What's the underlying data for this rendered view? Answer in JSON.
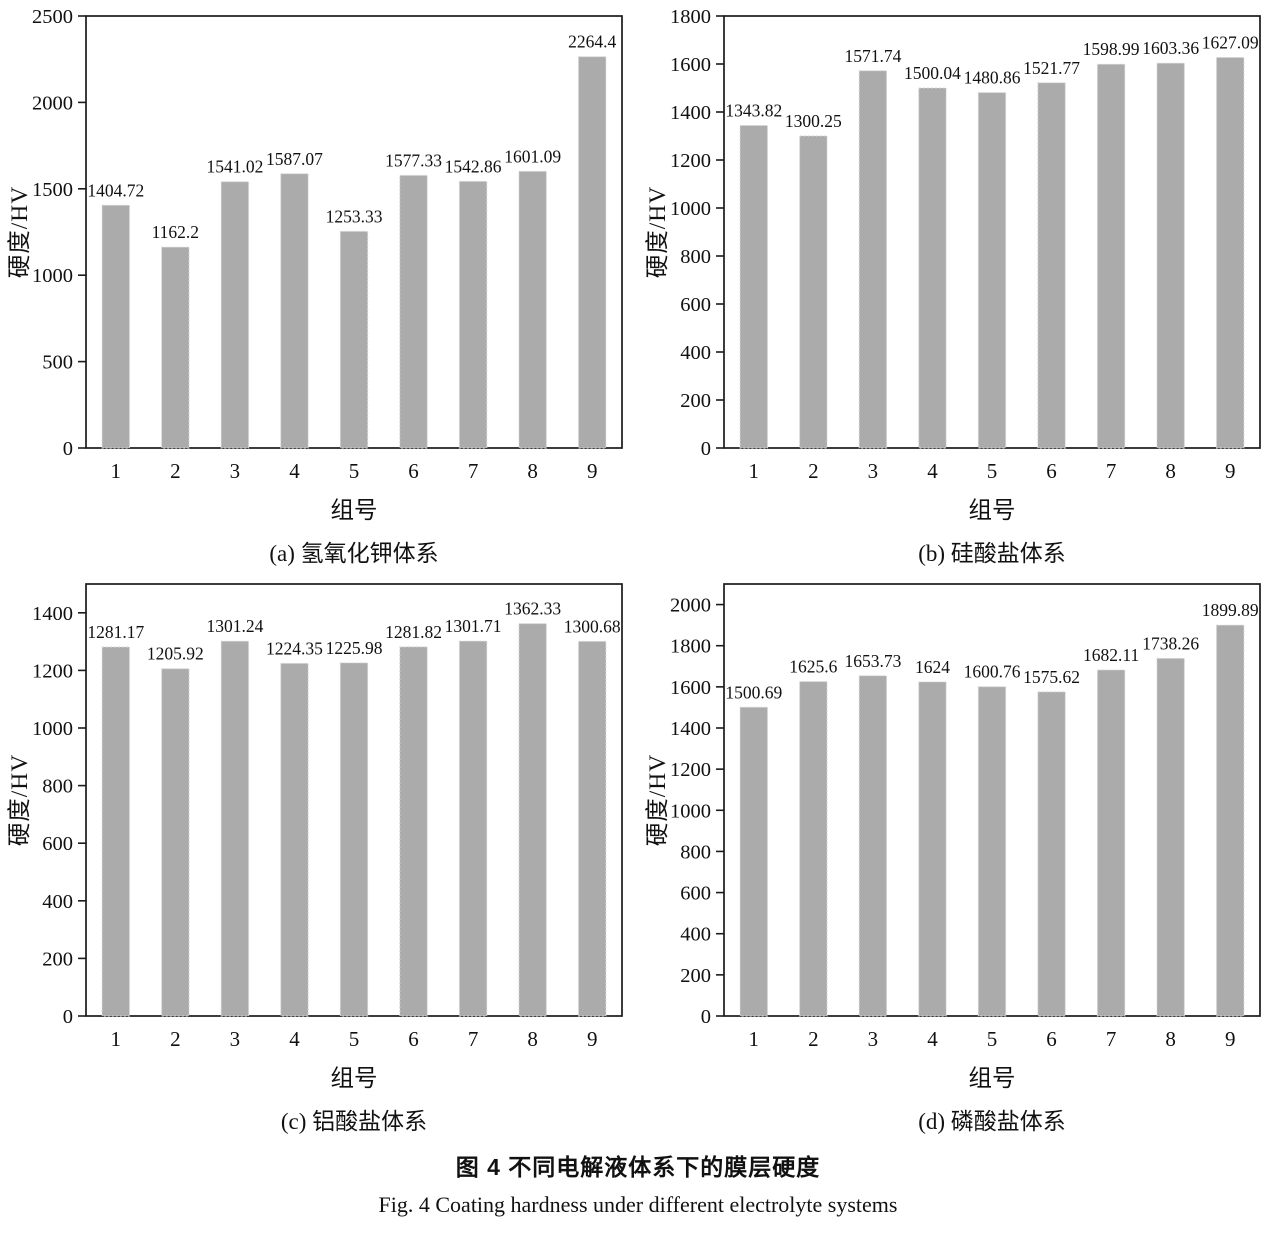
{
  "figure": {
    "caption_zh": "图 4  不同电解液体系下的膜层硬度",
    "caption_en": "Fig. 4   Coating hardness under different electrolyte systems"
  },
  "style": {
    "bar_color": "#ababab",
    "bar_edge_color": "#d6d6d6",
    "axis_color": "#1b1b1b"
  },
  "chart_data": [
    {
      "type": "bar",
      "panel": "a",
      "caption": "(a) 氢氧化钾体系",
      "xlabel": "组号",
      "ylabel": "硬度/HV",
      "categories": [
        "1",
        "2",
        "3",
        "4",
        "5",
        "6",
        "7",
        "8",
        "9"
      ],
      "values": [
        1404.72,
        1162.2,
        1541.02,
        1587.07,
        1253.33,
        1577.33,
        1542.86,
        1601.09,
        2264.4
      ],
      "labels": [
        "1404.72",
        "1162.2",
        "1541.02",
        "1587.07",
        "1253.33",
        "1577.33",
        "1542.86",
        "1601.09",
        "2264.4"
      ],
      "ylim": [
        0,
        2500
      ],
      "yticks": [
        0,
        500,
        1000,
        1500,
        2000,
        2500
      ],
      "grid": false,
      "legend": null
    },
    {
      "type": "bar",
      "panel": "b",
      "caption": "(b) 硅酸盐体系",
      "xlabel": "组号",
      "ylabel": "硬度/HV",
      "categories": [
        "1",
        "2",
        "3",
        "4",
        "5",
        "6",
        "7",
        "8",
        "9"
      ],
      "values": [
        1343.82,
        1300.25,
        1571.74,
        1500.04,
        1480.86,
        1521.77,
        1598.99,
        1603.36,
        1627.09
      ],
      "labels": [
        "1343.82",
        "1300.25",
        "1571.74",
        "1500.04",
        "1480.86",
        "1521.77",
        "1598.99",
        "1603.36",
        "1627.09"
      ],
      "ylim": [
        0,
        1800
      ],
      "yticks": [
        0,
        200,
        400,
        600,
        800,
        1000,
        1200,
        1400,
        1600,
        1800
      ],
      "grid": false,
      "legend": null
    },
    {
      "type": "bar",
      "panel": "c",
      "caption": "(c) 铝酸盐体系",
      "xlabel": "组号",
      "ylabel": "硬度/HV",
      "categories": [
        "1",
        "2",
        "3",
        "4",
        "5",
        "6",
        "7",
        "8",
        "9"
      ],
      "values": [
        1281.17,
        1205.92,
        1301.24,
        1224.35,
        1225.98,
        1281.82,
        1301.71,
        1362.33,
        1300.68
      ],
      "labels": [
        "1281.17",
        "1205.92",
        "1301.24",
        "1224.35",
        "1225.98",
        "1281.82",
        "1301.71",
        "1362.33",
        "1300.68"
      ],
      "ylim": [
        0,
        1500
      ],
      "yticks": [
        0,
        200,
        400,
        600,
        800,
        1000,
        1200,
        1400
      ],
      "grid": false,
      "legend": null
    },
    {
      "type": "bar",
      "panel": "d",
      "caption": "(d) 磷酸盐体系",
      "xlabel": "组号",
      "ylabel": "硬度/HV",
      "categories": [
        "1",
        "2",
        "3",
        "4",
        "5",
        "6",
        "7",
        "8",
        "9"
      ],
      "values": [
        1500.69,
        1625.6,
        1653.73,
        1624,
        1600.76,
        1575.62,
        1682.11,
        1738.26,
        1899.89
      ],
      "labels": [
        "1500.69",
        "1625.6",
        "1653.73",
        "1624",
        "1600.76",
        "1575.62",
        "1682.11",
        "1738.26",
        "1899.89"
      ],
      "ylim": [
        0,
        2100
      ],
      "yticks": [
        0,
        200,
        400,
        600,
        800,
        1000,
        1200,
        1400,
        1600,
        1800,
        2000
      ],
      "grid": false,
      "legend": null
    }
  ]
}
